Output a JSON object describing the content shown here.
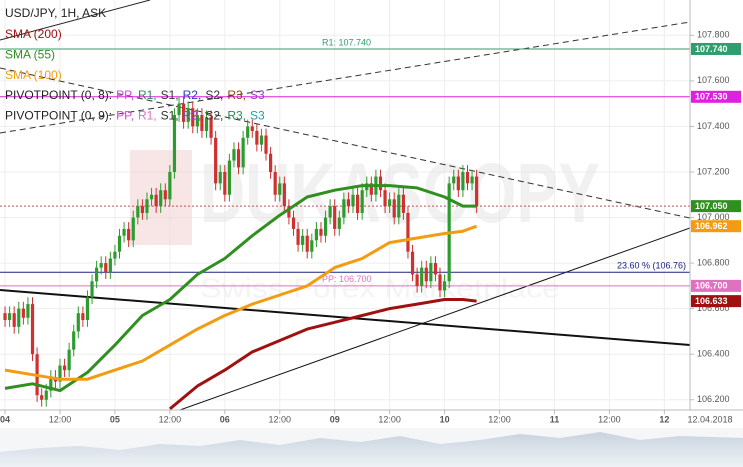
{
  "chart_data": {
    "type": "candlestick",
    "title": "USD/JPY, 1H, ASK",
    "date": "12.04.2018",
    "watermark": "DUKASCOPY",
    "watermark_subtitle": "Swiss Forex Marketplace",
    "up_color": "#2e9b2e",
    "down_color": "#d03030",
    "grid": true,
    "xlim": [
      -1.1,
      149.6
    ],
    "ylim": [
      106.155,
      107.955
    ],
    "xticks": [
      {
        "value": 0,
        "label": "04"
      },
      {
        "value": 12,
        "label": "12:00"
      },
      {
        "value": 24,
        "label": "05"
      },
      {
        "value": 36,
        "label": "12:00"
      },
      {
        "value": 48,
        "label": "06"
      },
      {
        "value": 60,
        "label": "12:00"
      },
      {
        "value": 72,
        "label": "09"
      },
      {
        "value": 84,
        "label": "12:00"
      },
      {
        "value": 96,
        "label": "10"
      },
      {
        "value": 108,
        "label": "12:00"
      },
      {
        "value": 120,
        "label": "11"
      },
      {
        "value": 132,
        "label": "12:00"
      },
      {
        "value": 144,
        "label": "12"
      }
    ],
    "yticks": [
      {
        "value": 107.8,
        "label": "107.800"
      },
      {
        "value": 107.6,
        "label": "107.600"
      },
      {
        "value": 107.4,
        "label": "107.400"
      },
      {
        "value": 107.2,
        "label": "107.200"
      },
      {
        "value": 107.0,
        "label": "107.000"
      },
      {
        "value": 106.8,
        "label": "106.800"
      },
      {
        "value": 106.6,
        "label": "106.600"
      },
      {
        "value": 106.4,
        "label": "106.400"
      },
      {
        "value": 106.2,
        "label": "106.200"
      }
    ],
    "ohlc": {
      "open": [
        106.58,
        106.55,
        106.58,
        106.52,
        106.6,
        106.56,
        106.62,
        106.4,
        106.22,
        106.2,
        106.24,
        106.3,
        106.28,
        106.35,
        106.33,
        106.42,
        106.5,
        106.58,
        106.55,
        106.65,
        106.72,
        106.78,
        106.8,
        106.76,
        106.82,
        106.85,
        106.92,
        106.95,
        106.9,
        107.0,
        107.05,
        107.02,
        107.08,
        107.1,
        107.05,
        107.12,
        107.08,
        107.2,
        107.45,
        107.5,
        107.42,
        107.48,
        107.4,
        107.45,
        107.38,
        107.44,
        107.35,
        107.15,
        107.2,
        107.1,
        107.25,
        107.3,
        107.22,
        107.35,
        107.4,
        107.38,
        107.32,
        107.36,
        107.28,
        107.2,
        107.1,
        107.15,
        107.05,
        107.0,
        106.95,
        106.88,
        106.92,
        106.85,
        106.9,
        106.95,
        106.92,
        107.0,
        107.05,
        106.95,
        107.0,
        107.08,
        107.05,
        107.1,
        107.02,
        107.12,
        107.15,
        107.1,
        107.18,
        107.12,
        107.05,
        107.08,
        107.0,
        107.1,
        107.02,
        106.85,
        106.75,
        106.7,
        106.78,
        106.72,
        106.8,
        106.75,
        106.68,
        106.72,
        107.15,
        107.18,
        107.12,
        107.2,
        107.15,
        107.18
      ],
      "high": [
        106.61,
        106.61,
        106.61,
        106.63,
        106.63,
        106.65,
        106.65,
        106.43,
        106.25,
        106.27,
        106.33,
        106.33,
        106.38,
        106.38,
        106.45,
        106.53,
        106.61,
        106.61,
        106.68,
        106.75,
        106.81,
        106.83,
        106.83,
        106.85,
        106.88,
        106.95,
        106.98,
        106.98,
        107.03,
        107.08,
        107.08,
        107.11,
        107.13,
        107.13,
        107.15,
        107.15,
        107.23,
        107.48,
        107.53,
        107.53,
        107.51,
        107.51,
        107.48,
        107.48,
        107.47,
        107.47,
        107.38,
        107.23,
        107.23,
        107.28,
        107.33,
        107.33,
        107.38,
        107.43,
        107.43,
        107.41,
        107.39,
        107.39,
        107.31,
        107.23,
        107.18,
        107.18,
        107.08,
        107.03,
        106.98,
        106.95,
        106.95,
        106.93,
        106.98,
        106.98,
        107.03,
        107.08,
        107.08,
        107.03,
        107.11,
        107.11,
        107.13,
        107.13,
        107.15,
        107.18,
        107.18,
        107.21,
        107.21,
        107.15,
        107.11,
        107.11,
        107.13,
        107.13,
        107.05,
        106.88,
        106.78,
        106.81,
        106.81,
        106.83,
        106.83,
        106.78,
        106.75,
        107.18,
        107.21,
        107.21,
        107.23,
        107.23,
        107.21,
        107.21
      ],
      "low": [
        106.52,
        106.52,
        106.49,
        106.49,
        106.53,
        106.53,
        106.37,
        106.19,
        106.17,
        106.17,
        106.21,
        106.25,
        106.25,
        106.3,
        106.3,
        106.39,
        106.47,
        106.52,
        106.52,
        106.62,
        106.69,
        106.75,
        106.73,
        106.73,
        106.79,
        106.82,
        106.89,
        106.87,
        106.87,
        106.97,
        106.99,
        106.99,
        107.05,
        107.02,
        107.02,
        107.05,
        107.05,
        107.17,
        107.42,
        107.39,
        107.39,
        107.37,
        107.37,
        107.35,
        107.35,
        107.32,
        107.12,
        107.12,
        107.07,
        107.07,
        107.22,
        107.19,
        107.19,
        107.32,
        107.35,
        107.29,
        107.29,
        107.25,
        107.17,
        107.07,
        107.07,
        107.02,
        106.97,
        106.92,
        106.85,
        106.85,
        106.82,
        106.82,
        106.87,
        106.89,
        106.89,
        106.97,
        106.92,
        106.92,
        106.97,
        107.02,
        107.02,
        106.99,
        106.99,
        107.09,
        107.07,
        107.07,
        107.09,
        107.02,
        107.02,
        106.97,
        106.97,
        106.99,
        106.82,
        106.72,
        106.67,
        106.67,
        106.69,
        106.69,
        106.72,
        106.65,
        106.65,
        106.69,
        107.12,
        107.09,
        107.09,
        107.12,
        107.12,
        107.02
      ],
      "close": [
        106.55,
        106.58,
        106.52,
        106.6,
        106.56,
        106.62,
        106.4,
        106.22,
        106.2,
        106.24,
        106.3,
        106.28,
        106.35,
        106.33,
        106.42,
        106.5,
        106.58,
        106.55,
        106.65,
        106.72,
        106.78,
        106.8,
        106.76,
        106.82,
        106.85,
        106.92,
        106.95,
        106.9,
        107.0,
        107.05,
        107.02,
        107.08,
        107.1,
        107.05,
        107.12,
        107.08,
        107.2,
        107.45,
        107.5,
        107.42,
        107.48,
        107.4,
        107.45,
        107.38,
        107.44,
        107.35,
        107.15,
        107.2,
        107.1,
        107.25,
        107.3,
        107.22,
        107.35,
        107.4,
        107.38,
        107.32,
        107.36,
        107.28,
        107.2,
        107.1,
        107.15,
        107.05,
        107.0,
        106.95,
        106.88,
        106.92,
        106.85,
        106.9,
        106.95,
        106.92,
        107.0,
        107.05,
        106.95,
        107.0,
        107.08,
        107.05,
        107.1,
        107.02,
        107.12,
        107.15,
        107.1,
        107.18,
        107.12,
        107.05,
        107.08,
        107.0,
        107.1,
        107.02,
        106.85,
        106.75,
        106.7,
        106.78,
        106.72,
        106.8,
        106.75,
        106.68,
        106.72,
        107.15,
        107.18,
        107.12,
        107.2,
        107.15,
        107.18,
        107.05
      ]
    },
    "series": [
      {
        "name": "SMA (200)",
        "color": "#a01010",
        "x": [
          36,
          42,
          48,
          54,
          60,
          66,
          72,
          78,
          84,
          90,
          96,
          100,
          103
        ],
        "values": [
          106.16,
          106.26,
          106.33,
          106.41,
          106.46,
          106.51,
          106.54,
          106.57,
          106.6,
          106.62,
          106.64,
          106.64,
          106.633
        ],
        "value_labels": [
          null,
          null,
          null,
          null,
          null,
          null,
          null,
          null,
          null,
          null,
          null,
          null,
          "106.633"
        ]
      },
      {
        "name": "SMA (55)",
        "color": "#2f8f1f",
        "x": [
          0,
          6,
          12,
          18,
          24,
          30,
          36,
          42,
          48,
          54,
          60,
          66,
          72,
          78,
          84,
          90,
          96,
          100,
          103
        ],
        "values": [
          106.25,
          106.27,
          106.24,
          106.32,
          106.44,
          106.57,
          106.64,
          106.75,
          106.82,
          106.92,
          107.01,
          107.09,
          107.12,
          107.14,
          107.14,
          107.13,
          107.09,
          107.05,
          107.05
        ],
        "value_labels": [
          null,
          null,
          null,
          null,
          null,
          null,
          null,
          null,
          null,
          null,
          null,
          null,
          null,
          null,
          null,
          null,
          null,
          null,
          "107.050"
        ]
      },
      {
        "name": "SMA (100)",
        "color": "#f39c12",
        "x": [
          0,
          6,
          12,
          18,
          24,
          30,
          36,
          42,
          48,
          54,
          60,
          66,
          72,
          78,
          84,
          90,
          96,
          100,
          103
        ],
        "values": [
          106.33,
          106.31,
          106.29,
          106.29,
          106.33,
          106.37,
          106.44,
          106.51,
          106.57,
          106.62,
          106.66,
          106.7,
          106.78,
          106.82,
          106.89,
          106.91,
          106.93,
          106.94,
          106.962
        ],
        "value_labels": [
          null,
          null,
          null,
          null,
          null,
          null,
          null,
          null,
          null,
          null,
          null,
          null,
          null,
          null,
          null,
          null,
          null,
          null,
          "106.962"
        ]
      }
    ],
    "levels": [
      {
        "value": 107.74,
        "label": "107.740",
        "line_label": "R1: 107.740",
        "color": "#2e9e6e"
      },
      {
        "value": 107.53,
        "label": "107.530",
        "color": "#e020e0"
      },
      {
        "value": 107.05,
        "color": "#c05050",
        "dashed": true
      },
      {
        "value": 106.76,
        "line_label": "23.60 % (106.76)",
        "color": "#1a237e"
      },
      {
        "value": 106.7,
        "label": "106.700",
        "line_label": "PP: 106.700",
        "color": "#e070c0"
      }
    ],
    "pivot_legends": [
      {
        "label": "PIVOTPOINT (0, 8):",
        "items": [
          {
            "text": "PP,",
            "color": "#e040e0"
          },
          {
            "text": "R1,",
            "color": "#2e8b57"
          },
          {
            "text": "S1,",
            "color": "#333333"
          },
          {
            "text": "R2,",
            "color": "#2040c0"
          },
          {
            "text": "S2,",
            "color": "#333333"
          },
          {
            "text": "R3,",
            "color": "#8b4513"
          },
          {
            "text": "S3",
            "color": "#9040c0"
          }
        ]
      },
      {
        "label": "PIVOTPOINT (0, 9):",
        "items": [
          {
            "text": "PP,",
            "color": "#e040e0"
          },
          {
            "text": "R1,",
            "color": "#e070c0"
          },
          {
            "text": "S1,",
            "color": "#333333"
          },
          {
            "text": "R2,",
            "color": "#9040c0"
          },
          {
            "text": "S2,",
            "color": "#333333"
          },
          {
            "text": "R3,",
            "color": "#2e8b57"
          },
          {
            "text": "S3",
            "color": "#20a0a0"
          }
        ]
      }
    ]
  }
}
